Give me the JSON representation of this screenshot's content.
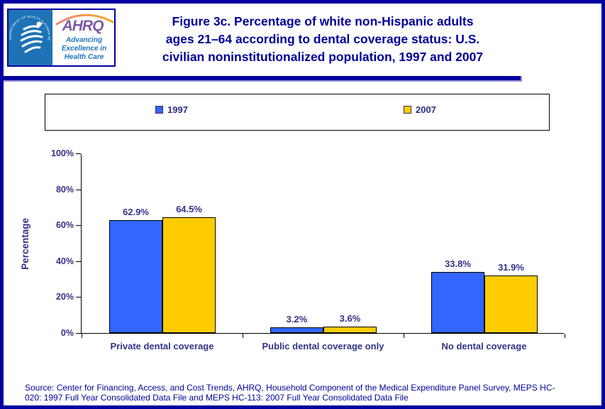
{
  "header": {
    "title_lines": [
      "Figure 3c. Percentage of white non-Hispanic adults",
      "ages 21–64 according to dental coverage status: U.S.",
      "civilian noninstitutionalized population, 1997 and 2007"
    ],
    "logo": {
      "org_abbrev": "AHRQ",
      "tagline_lines": [
        "Advancing",
        "Excellence in",
        "Health Care"
      ],
      "seal_text": "DEPARTMENT OF HEALTH & HUMAN SERVICES • USA"
    }
  },
  "legend": {
    "items": [
      {
        "label": "1997",
        "color": "#3366FF"
      },
      {
        "label": "2007",
        "color": "#FFCC00"
      }
    ]
  },
  "chart_data": {
    "type": "bar",
    "title": "Percentage of white non-Hispanic adults ages 21–64 according to dental coverage status, 1997 and 2007",
    "xlabel": "",
    "ylabel": "Percentage",
    "ylim": [
      0,
      100
    ],
    "ytick_labels": [
      "0%",
      "20%",
      "40%",
      "60%",
      "80%",
      "100%"
    ],
    "grid": false,
    "legend_position": "top",
    "categories": [
      "Private dental coverage",
      "Public dental coverage only",
      "No dental coverage"
    ],
    "series": [
      {
        "name": "1997",
        "color": "#3366FF",
        "values": [
          62.9,
          3.2,
          33.8
        ]
      },
      {
        "name": "2007",
        "color": "#FFCC00",
        "values": [
          64.5,
          3.6,
          31.9
        ]
      }
    ],
    "value_labels": [
      [
        "62.9%",
        "3.2%",
        "33.8%"
      ],
      [
        "64.5%",
        "3.6%",
        "31.9%"
      ]
    ]
  },
  "source": {
    "lines": [
      "Source: Center for Financing, Access, and Cost Trends, AHRQ, Household Component of the Medical Expenditure Panel Survey, MEPS HC-",
      "020: 1997 Full Year Consolidated Data File and MEPS HC-113: 2007 Full Year Consolidated Data File"
    ]
  },
  "colors": {
    "frame_navy": "#0000A0",
    "title_text": "#000099",
    "chart_text": "#333388",
    "bar_1997": "#3366FF",
    "bar_2007": "#FFCC00",
    "hhs_panel_blue": "#1E73B6",
    "ahrq_purple": "#7B5AA6",
    "ahrq_blue": "#1B75BC"
  }
}
